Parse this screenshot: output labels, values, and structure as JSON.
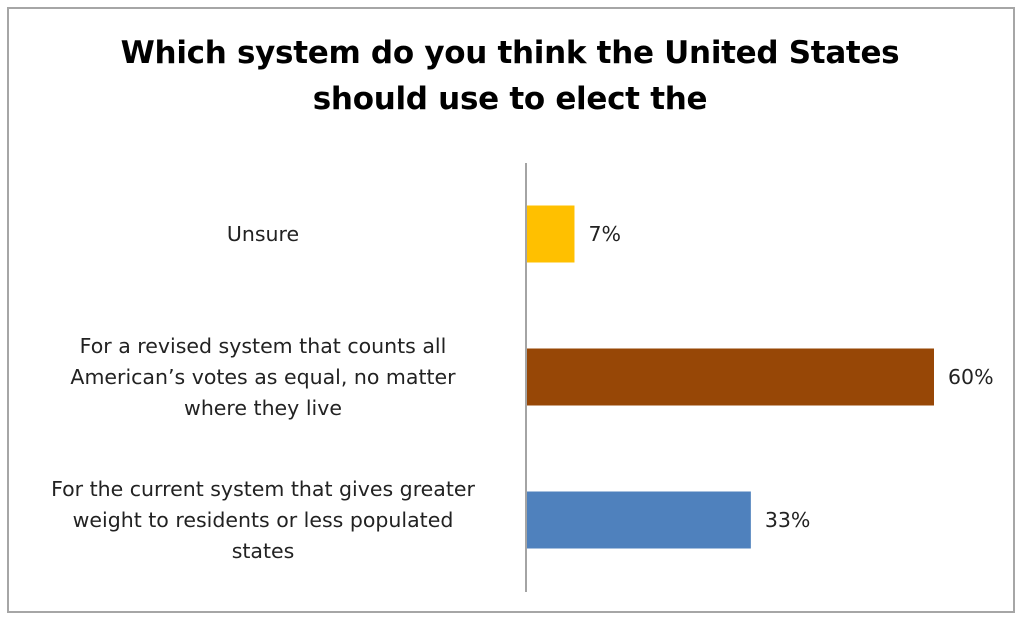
{
  "chart_data": {
    "type": "bar",
    "orientation": "horizontal",
    "title": "Which system do you think the United States should use to elect the",
    "xlabel": "",
    "ylabel": "",
    "categories": [
      "Unsure",
      "For a revised system that counts all American’s votes as equal, no matter where they live",
      "For the current system that gives greater weight to residents or less populated states"
    ],
    "category_lines": [
      [
        "Unsure"
      ],
      [
        "For a revised system that counts all",
        "American’s votes as equal, no matter",
        "where they live"
      ],
      [
        "For the current system that gives greater",
        "weight to residents or less populated",
        "states"
      ]
    ],
    "values": [
      7,
      60,
      33
    ],
    "value_labels": [
      "7%",
      "60%",
      "33%"
    ],
    "unit": "%",
    "xlim": [
      0,
      60
    ],
    "colors": [
      "#ffc000",
      "#974706",
      "#4f81bd"
    ],
    "grid": false,
    "legend": "none"
  }
}
